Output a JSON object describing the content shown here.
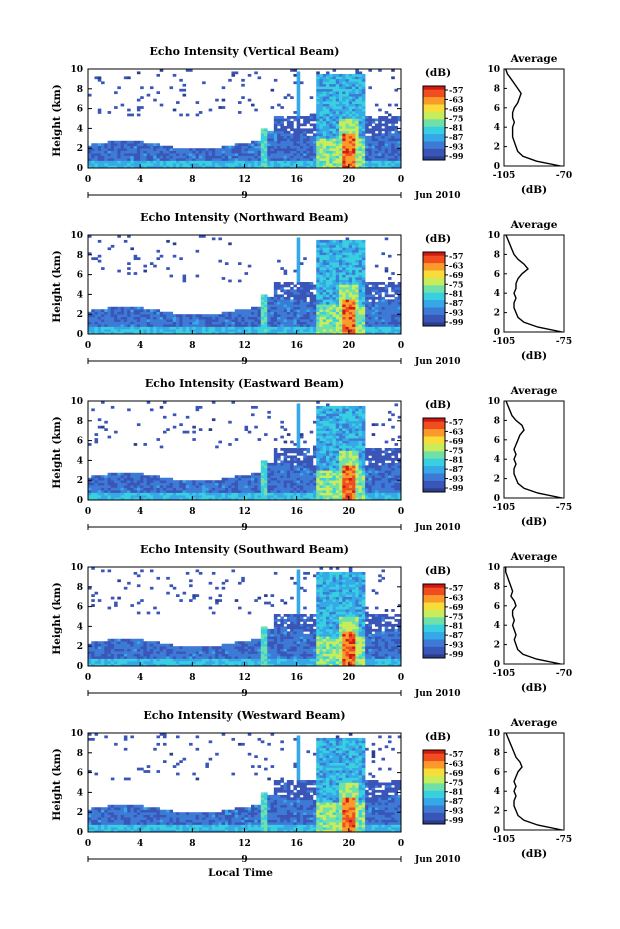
{
  "shared": {
    "x_ticks": [
      "0",
      "4",
      "8",
      "12",
      "16",
      "20",
      "0"
    ],
    "y_ticks": [
      "0",
      "2",
      "4",
      "6",
      "8",
      "10"
    ],
    "y_label": "Height (km)",
    "date_day": "9",
    "date_month_year": "Jun 2010",
    "colorbar_unit": "(dB)",
    "colorbar_ticks": [
      "-57",
      "-63",
      "-69",
      "-75",
      "-81",
      "-87",
      "-93",
      "-99"
    ],
    "avg_title": "Average",
    "avg_y_ticks": [
      "0",
      "2",
      "4",
      "6",
      "8",
      "10"
    ],
    "avg_xlabel": "(dB)",
    "x_axis_label": "Local Time"
  },
  "chart_data": [
    {
      "type": "heatmap",
      "title": "Echo Intensity (Vertical Beam)",
      "xlabel": "",
      "ylabel": "Height (km)",
      "x_range_hours": [
        0,
        24
      ],
      "ylim": [
        0,
        10
      ],
      "colorbar_range_db": [
        -99,
        -57
      ],
      "average_profile": {
        "xlim": [
          -105,
          -70
        ],
        "x_ticks": [
          "-105",
          "-70"
        ],
        "height_km": [
          0,
          0.5,
          1,
          1.5,
          2,
          2.5,
          3,
          3.5,
          4,
          4.5,
          5,
          5.5,
          6,
          6.5,
          7,
          7.5,
          8,
          8.5,
          9,
          9.5,
          10
        ],
        "db": [
          -72,
          -86,
          -94,
          -97,
          -98,
          -99,
          -100,
          -100,
          -100,
          -99,
          -100,
          -100,
          -99,
          -97,
          -96,
          -95,
          -97,
          -99,
          -101,
          -103,
          -104
        ]
      }
    },
    {
      "type": "heatmap",
      "title": "Echo Intensity (Northward Beam)",
      "xlabel": "",
      "ylabel": "Height (km)",
      "x_range_hours": [
        0,
        24
      ],
      "ylim": [
        0,
        10
      ],
      "colorbar_range_db": [
        -99,
        -57
      ],
      "average_profile": {
        "xlim": [
          -105,
          -75
        ],
        "x_ticks": [
          "-105",
          "-75"
        ],
        "height_km": [
          0,
          0.5,
          1,
          1.5,
          2,
          2.5,
          3,
          3.5,
          4,
          4.5,
          5,
          5.5,
          6,
          6.5,
          7,
          7.5,
          8,
          8.5,
          9,
          9.5,
          10
        ],
        "db": [
          -76,
          -88,
          -95,
          -98,
          -99,
          -100,
          -100,
          -99,
          -100,
          -99,
          -99,
          -98,
          -96,
          -93,
          -95,
          -98,
          -100,
          -101,
          -102,
          -103,
          -104
        ]
      }
    },
    {
      "type": "heatmap",
      "title": "Echo Intensity (Eastward Beam)",
      "xlabel": "",
      "ylabel": "Height (km)",
      "x_range_hours": [
        0,
        24
      ],
      "ylim": [
        0,
        10
      ],
      "colorbar_range_db": [
        -99,
        -57
      ],
      "average_profile": {
        "xlim": [
          -105,
          -75
        ],
        "x_ticks": [
          "-105",
          "-75"
        ],
        "height_km": [
          0,
          0.5,
          1,
          1.5,
          2,
          2.5,
          3,
          3.5,
          4,
          4.5,
          5,
          5.5,
          6,
          6.5,
          7,
          7.5,
          8,
          8.5,
          9,
          9.5,
          10
        ],
        "db": [
          -76,
          -88,
          -95,
          -98,
          -99,
          -100,
          -100,
          -99,
          -100,
          -99,
          -100,
          -99,
          -98,
          -97,
          -95,
          -96,
          -99,
          -101,
          -102,
          -103,
          -104
        ]
      }
    },
    {
      "type": "heatmap",
      "title": "Echo Intensity (Southward Beam)",
      "xlabel": "",
      "ylabel": "Height (km)",
      "x_range_hours": [
        0,
        24
      ],
      "ylim": [
        0,
        10
      ],
      "colorbar_range_db": [
        -99,
        -57
      ],
      "average_profile": {
        "xlim": [
          -105,
          -70
        ],
        "x_ticks": [
          "-105",
          "-70"
        ],
        "height_km": [
          0,
          0.5,
          1,
          1.5,
          2,
          2.5,
          3,
          3.5,
          4,
          4.5,
          5,
          5.5,
          6,
          6.5,
          7,
          7.5,
          8,
          8.5,
          9,
          9.5,
          10
        ],
        "db": [
          -72,
          -86,
          -94,
          -97,
          -98,
          -99,
          -98,
          -99,
          -100,
          -99,
          -100,
          -100,
          -98,
          -99,
          -101,
          -100,
          -101,
          -102,
          -103,
          -104,
          -104
        ]
      }
    },
    {
      "type": "heatmap",
      "title": "Echo Intensity (Westward Beam)",
      "xlabel": "Local Time",
      "ylabel": "Height (km)",
      "x_range_hours": [
        0,
        24
      ],
      "ylim": [
        0,
        10
      ],
      "colorbar_range_db": [
        -99,
        -57
      ],
      "average_profile": {
        "xlim": [
          -105,
          -75
        ],
        "x_ticks": [
          "-105",
          "-75"
        ],
        "height_km": [
          0,
          0.5,
          1,
          1.5,
          2,
          2.5,
          3,
          3.5,
          4,
          4.5,
          5,
          5.5,
          6,
          6.5,
          7,
          7.5,
          8,
          8.5,
          9,
          9.5,
          10
        ],
        "db": [
          -76,
          -88,
          -95,
          -98,
          -99,
          -100,
          -100,
          -99,
          -100,
          -99,
          -100,
          -99,
          -98,
          -96,
          -97,
          -99,
          -100,
          -101,
          -102,
          -103,
          -104
        ]
      }
    }
  ],
  "colors": {
    "colormap": [
      "#2b3f8f",
      "#3a55b8",
      "#3c7ad6",
      "#35a8e8",
      "#38d0e0",
      "#6fe0a8",
      "#c8ec5a",
      "#f7dc3a",
      "#fb9a2a",
      "#f04d20",
      "#d01a10"
    ],
    "line": "#000000"
  }
}
